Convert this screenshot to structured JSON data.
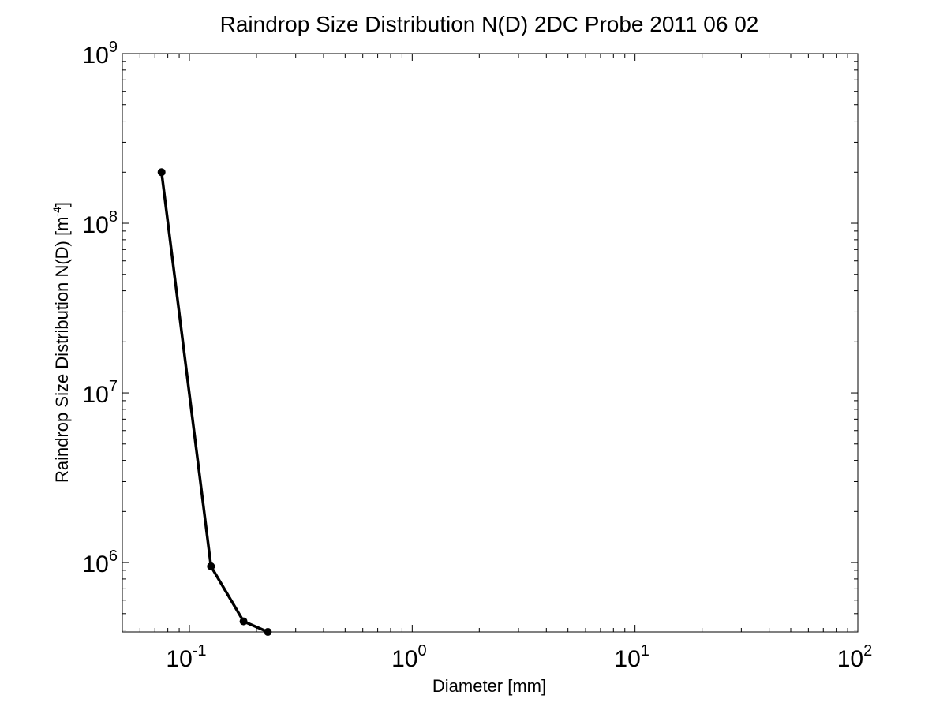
{
  "chart_data": {
    "type": "line",
    "title": "Raindrop Size Distribution N(D) 2DC Probe 2011 06 02",
    "xlabel": "Diameter [mm]",
    "ylabel_base": "Raindrop Size Distribution N(D) [m",
    "ylabel_exp": "-4",
    "ylabel_end": "]",
    "xscale": "log",
    "yscale": "log",
    "xlim": [
      0.05,
      100
    ],
    "ylim": [
      390000,
      1000000000
    ],
    "grid": false,
    "x_ticks": [
      {
        "value": 0.1,
        "base": "10",
        "exp": "-1"
      },
      {
        "value": 1,
        "base": "10",
        "exp": "0"
      },
      {
        "value": 10,
        "base": "10",
        "exp": "1"
      },
      {
        "value": 100,
        "base": "10",
        "exp": "2"
      }
    ],
    "y_ticks": [
      {
        "value": 1000000,
        "base": "10",
        "exp": "6"
      },
      {
        "value": 10000000,
        "base": "10",
        "exp": "7"
      },
      {
        "value": 100000000,
        "base": "10",
        "exp": "8"
      },
      {
        "value": 1000000000,
        "base": "10",
        "exp": "9"
      }
    ],
    "series": [
      {
        "color": "#000000",
        "marker": "circle",
        "x": [
          0.075,
          0.125,
          0.175,
          0.225
        ],
        "y": [
          200000000,
          950000,
          450000,
          390000
        ]
      }
    ]
  }
}
